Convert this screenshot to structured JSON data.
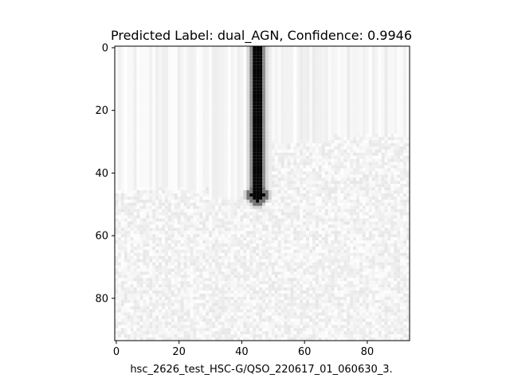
{
  "figure": {
    "title": "Predicted Label: dual_AGN, Confidence: 0.9946",
    "xlabel": "hsc_2626_test_HSC-G/QSO_220617_01_060630_3.",
    "image_size": [
      94,
      94
    ],
    "colormap": "gray_r",
    "x_ticks": [
      0,
      20,
      40,
      60,
      80
    ],
    "y_ticks": [
      0,
      20,
      40,
      60,
      80
    ],
    "features": {
      "streak_column": 45,
      "streak_end_row": 48,
      "upper_region_rows": "0-45 (vertical striped pattern)",
      "lower_region_rows": "45-93 (light noise)"
    }
  }
}
